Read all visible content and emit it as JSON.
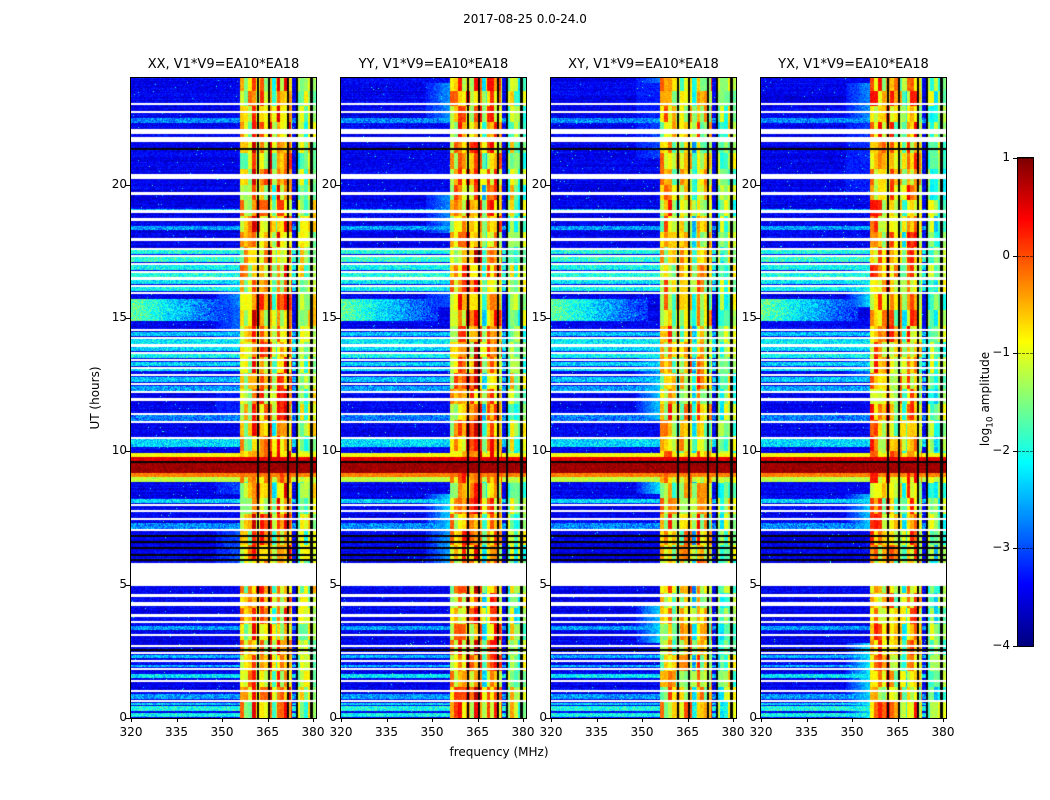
{
  "figure": {
    "title": "2017-08-25 0.0-24.0",
    "xlabel": "frequency (MHz)",
    "ylabel": "UT (hours)",
    "colorbar": {
      "label_prefix": "log",
      "label_sub": "10",
      "label_suffix": " amplitude",
      "label_full": "log10 amplitude"
    }
  },
  "chart_data": {
    "type": "heatmap",
    "title": "2017-08-25 0.0-24.0",
    "xlabel": "frequency (MHz)",
    "ylabel": "UT (hours)",
    "colorbar_label": "log10 amplitude",
    "colormap": "jet",
    "xlim": [
      320,
      381
    ],
    "ylim": [
      0,
      24
    ],
    "clim": [
      -4,
      1
    ],
    "x_ticks": [
      320,
      335,
      350,
      365,
      380
    ],
    "y_ticks": [
      0,
      5,
      10,
      15,
      20
    ],
    "colorbar_ticks": [
      1,
      0,
      -1,
      -2,
      -3,
      -4
    ],
    "panels": [
      {
        "title": "XX, V1*V9=EA10*EA18",
        "seed": 11,
        "band_gain": 1.0
      },
      {
        "title": "YY, V1*V9=EA10*EA18",
        "seed": 23,
        "band_gain": 1.04
      },
      {
        "title": "XY, V1*V9=EA10*EA18",
        "seed": 37,
        "band_gain": 0.94
      },
      {
        "title": "YX, V1*V9=EA10*EA18",
        "seed": 51,
        "band_gain": 0.92
      }
    ],
    "background_level": -3.45,
    "background_noise": 0.55,
    "rfi_bands": [
      {
        "f_start": 356.0,
        "f_end": 373.0,
        "level": -0.55,
        "variation": 0.85,
        "gap": {
          "f_start": 366.5,
          "f_end": 368.2,
          "drop": 1.1
        }
      },
      {
        "f_start": 374.5,
        "f_end": 381.0,
        "level": -1.35,
        "variation": 0.7
      }
    ],
    "flagged_channels": [
      361.8,
      365.5,
      371.8,
      374.6,
      379.5
    ],
    "flagged_times_white": [
      [
        0.6,
        0.68
      ],
      [
        0.98,
        1.06
      ],
      [
        1.35,
        1.43
      ],
      [
        1.8,
        1.88
      ],
      [
        2.1,
        2.18
      ],
      [
        2.4,
        2.48
      ],
      [
        2.66,
        2.74
      ],
      [
        3.07,
        3.15
      ],
      [
        3.55,
        3.64
      ],
      [
        3.8,
        3.9
      ],
      [
        4.2,
        4.35
      ],
      [
        4.55,
        4.65
      ],
      [
        4.95,
        5.8
      ],
      [
        7.0,
        7.07
      ],
      [
        7.43,
        7.51
      ],
      [
        7.73,
        7.81
      ],
      [
        7.95,
        8.03
      ],
      [
        10.47,
        10.55
      ],
      [
        11.07,
        11.15
      ],
      [
        11.37,
        11.45
      ],
      [
        11.9,
        11.99
      ],
      [
        12.2,
        12.28
      ],
      [
        12.5,
        12.58
      ],
      [
        12.82,
        12.9
      ],
      [
        13.1,
        13.18
      ],
      [
        13.38,
        13.45
      ],
      [
        13.66,
        13.74
      ],
      [
        13.93,
        14.01
      ],
      [
        14.22,
        14.3
      ],
      [
        14.5,
        14.58
      ],
      [
        15.9,
        15.99
      ],
      [
        16.17,
        16.25
      ],
      [
        16.44,
        16.52
      ],
      [
        16.7,
        16.78
      ],
      [
        17.0,
        17.08
      ],
      [
        17.3,
        17.38
      ],
      [
        17.56,
        17.64
      ],
      [
        17.9,
        17.99
      ],
      [
        18.65,
        18.76
      ],
      [
        18.95,
        19.06
      ],
      [
        19.6,
        19.72
      ],
      [
        20.2,
        20.4
      ],
      [
        21.6,
        21.8
      ],
      [
        21.9,
        22.1
      ],
      [
        22.7,
        22.78
      ],
      [
        23.0,
        23.08
      ]
    ],
    "flagged_times_black": [
      [
        2.52,
        2.58
      ],
      [
        5.9,
        5.97
      ],
      [
        6.07,
        6.16
      ],
      [
        6.32,
        6.4
      ],
      [
        6.56,
        6.64
      ],
      [
        6.8,
        6.87
      ],
      [
        9.55,
        9.62
      ],
      [
        21.3,
        21.38
      ]
    ],
    "solar_burst_rows": [
      [
        8.85,
        9.05,
        -1.2
      ],
      [
        9.05,
        9.2,
        -0.25
      ],
      [
        9.2,
        9.55,
        0.85
      ],
      [
        9.62,
        9.78,
        0.5
      ],
      [
        9.78,
        9.95,
        -0.9
      ]
    ],
    "rfi_rows": [
      [
        0.02,
        0.2,
        -2.1
      ],
      [
        0.25,
        0.45,
        -2.0
      ],
      [
        0.5,
        0.58,
        -2.3
      ],
      [
        0.7,
        0.9,
        -2.6
      ],
      [
        1.5,
        1.65,
        -2.2
      ],
      [
        1.9,
        2.0,
        -2.5
      ],
      [
        2.25,
        2.38,
        -2.5
      ],
      [
        3.3,
        3.45,
        -2.6
      ],
      [
        7.1,
        7.3,
        -2.7
      ],
      [
        8.05,
        8.2,
        -2.3
      ],
      [
        10.15,
        10.45,
        -2.3
      ],
      [
        11.15,
        11.35,
        -2.8
      ],
      [
        12.28,
        12.45,
        -2.6
      ],
      [
        12.6,
        12.8,
        -2.4
      ],
      [
        13.0,
        13.08,
        -2.2
      ],
      [
        13.2,
        13.36,
        -2.3
      ],
      [
        13.5,
        13.64,
        -2.1
      ],
      [
        13.76,
        13.91,
        -2.3
      ],
      [
        14.03,
        14.2,
        -2.2
      ],
      [
        14.32,
        14.48,
        -2.4
      ],
      [
        16.0,
        16.15,
        -2.1
      ],
      [
        16.27,
        16.42,
        -2.2
      ],
      [
        16.54,
        16.68,
        -2.0
      ],
      [
        16.8,
        16.98,
        -2.1
      ],
      [
        17.1,
        17.28,
        -1.9
      ],
      [
        17.4,
        17.54,
        -2.0
      ],
      [
        18.3,
        18.45,
        -2.6
      ],
      [
        19.0,
        19.1,
        -2.5
      ],
      [
        22.3,
        22.5,
        -2.7
      ]
    ],
    "wedge": {
      "ut_start": 14.9,
      "ut_end": 15.7,
      "f_start": 320,
      "f_end": 352,
      "level_left": -1.6,
      "level_right": -3.2
    }
  }
}
